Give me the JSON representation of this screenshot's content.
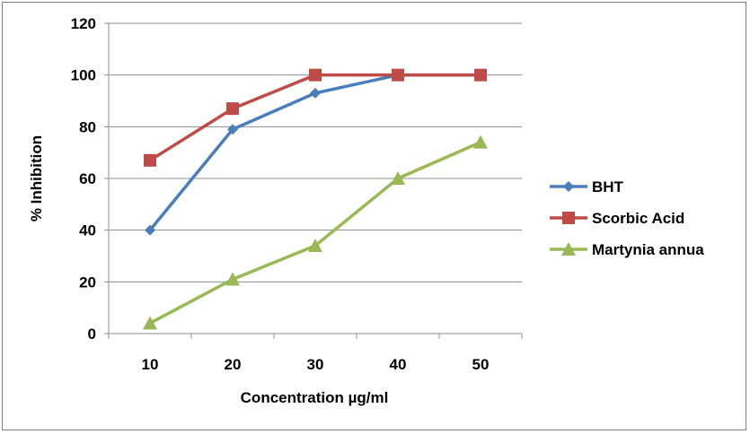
{
  "chart_data": {
    "type": "line",
    "categories": [
      "10",
      "20",
      "30",
      "40",
      "50"
    ],
    "series": [
      {
        "name": "BHT",
        "values": [
          40,
          79,
          93,
          100,
          100
        ],
        "color": "#4a7ebb",
        "marker": "diamond"
      },
      {
        "name": "Scorbic Acid",
        "values": [
          67,
          87,
          100,
          100,
          100
        ],
        "color": "#be4b48",
        "marker": "square"
      },
      {
        "name": "Martynia annua",
        "values": [
          4,
          21,
          34,
          60,
          74
        ],
        "color": "#98b954",
        "marker": "triangle"
      }
    ],
    "title": "",
    "xlabel": "Concentration µg/ml",
    "ylabel": "% Inhibition",
    "ylim": [
      0,
      120
    ],
    "yticks": [
      "0",
      "20",
      "40",
      "60",
      "80",
      "100",
      "120"
    ],
    "grid": true,
    "legend_position": "right"
  }
}
